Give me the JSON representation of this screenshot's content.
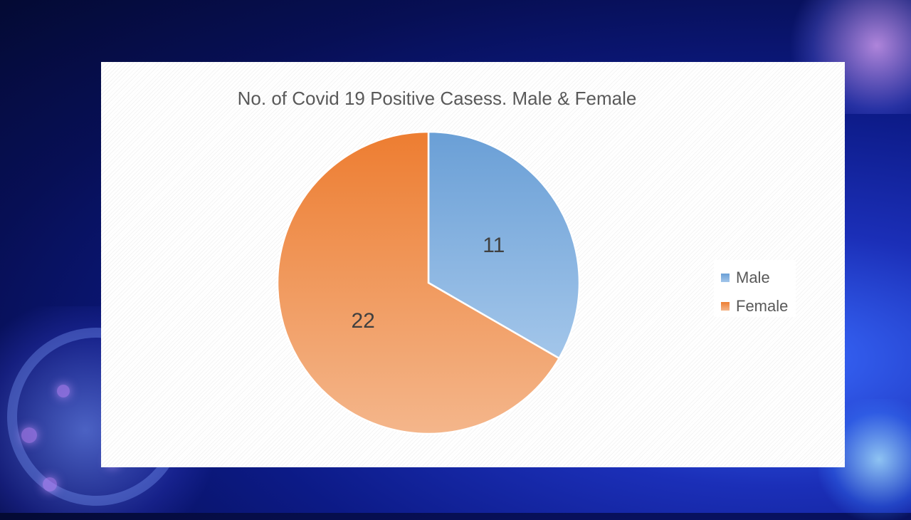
{
  "colors": {
    "male": "#6a9fd6",
    "male_light": "#a3c6ea",
    "female": "#ed7d31",
    "female_light": "#f4b68b"
  },
  "chart_data": {
    "type": "pie",
    "title": "No. of Covid 19 Positive Casess. Male & Female",
    "series": [
      {
        "name": "Male",
        "value": 11,
        "label": "11"
      },
      {
        "name": "Female",
        "value": 22,
        "label": "22"
      }
    ],
    "legend_position": "right"
  }
}
